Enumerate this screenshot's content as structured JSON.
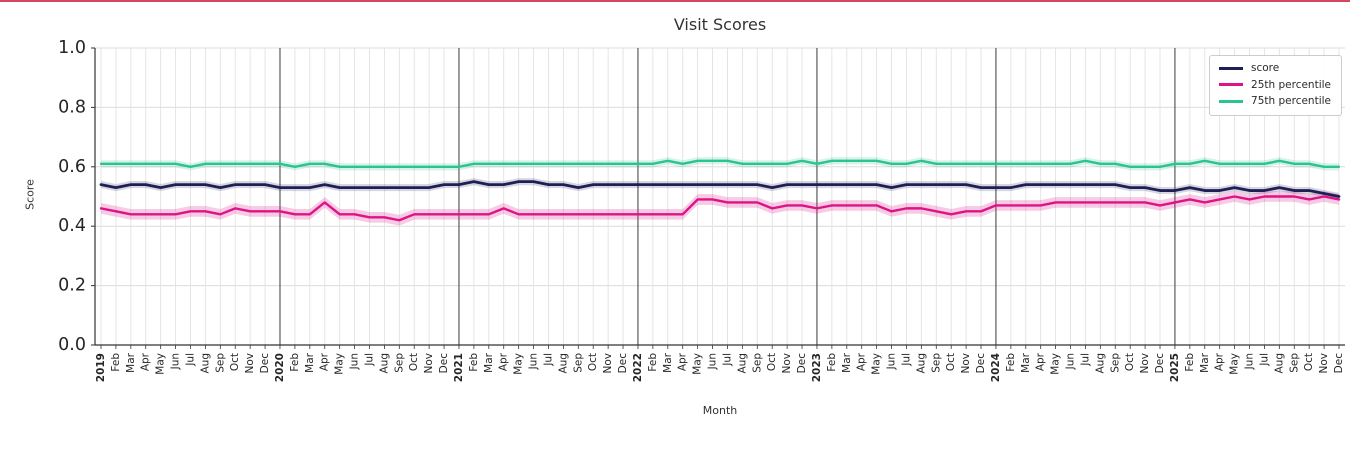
{
  "accent": {
    "top_bar_color": "#d64561"
  },
  "chart_data": {
    "type": "line",
    "title": "Visit Scores",
    "xlabel": "Month",
    "ylabel": "Score",
    "ylim": [
      0.0,
      1.0
    ],
    "ytick_labels": [
      "1.0",
      "0.8",
      "0.6",
      "0.4",
      "0.2",
      "0.0"
    ],
    "grid": true,
    "legend_position": "upper right",
    "x_tick_labels": [
      "2019",
      "Feb",
      "Mar",
      "Apr",
      "May",
      "Jun",
      "Jul",
      "Aug",
      "Sep",
      "Oct",
      "Nov",
      "Dec",
      "2020",
      "Feb",
      "Mar",
      "Apr",
      "May",
      "Jun",
      "Jul",
      "Aug",
      "Sep",
      "Oct",
      "Nov",
      "Dec",
      "2021",
      "Feb",
      "Mar",
      "Apr",
      "May",
      "Jun",
      "Jul",
      "Aug",
      "Sep",
      "Oct",
      "Nov",
      "Dec",
      "2022",
      "Feb",
      "Mar",
      "Apr",
      "May",
      "Jun",
      "Jul",
      "Aug",
      "Sep",
      "Oct",
      "Nov",
      "Dec",
      "2023",
      "Feb",
      "Mar",
      "Apr",
      "May",
      "Jun",
      "Jul",
      "Aug",
      "Sep",
      "Oct",
      "Nov",
      "Dec",
      "2024",
      "Feb",
      "Mar",
      "Apr",
      "May",
      "Jun",
      "Jul",
      "Aug",
      "Sep",
      "Oct",
      "Nov",
      "Dec",
      "2025",
      "Feb",
      "Mar",
      "Apr",
      "May",
      "Jun",
      "Jul",
      "Aug",
      "Sep",
      "Oct",
      "Nov",
      "Dec"
    ],
    "series": [
      {
        "name": "score",
        "color": "#1f1f57",
        "band": 0.012,
        "band_opacity": 0.18,
        "line_width": 2.8,
        "values": [
          0.54,
          0.53,
          0.54,
          0.54,
          0.53,
          0.54,
          0.54,
          0.54,
          0.53,
          0.54,
          0.54,
          0.54,
          0.53,
          0.53,
          0.53,
          0.54,
          0.53,
          0.53,
          0.53,
          0.53,
          0.53,
          0.53,
          0.53,
          0.54,
          0.54,
          0.55,
          0.54,
          0.54,
          0.55,
          0.55,
          0.54,
          0.54,
          0.53,
          0.54,
          0.54,
          0.54,
          0.54,
          0.54,
          0.54,
          0.54,
          0.54,
          0.54,
          0.54,
          0.54,
          0.54,
          0.53,
          0.54,
          0.54,
          0.54,
          0.54,
          0.54,
          0.54,
          0.54,
          0.53,
          0.54,
          0.54,
          0.54,
          0.54,
          0.54,
          0.53,
          0.53,
          0.53,
          0.54,
          0.54,
          0.54,
          0.54,
          0.54,
          0.54,
          0.54,
          0.53,
          0.53,
          0.52,
          0.52,
          0.53,
          0.52,
          0.52,
          0.53,
          0.52,
          0.52,
          0.53,
          0.52,
          0.52,
          0.51,
          0.5
        ]
      },
      {
        "name": "25th percentile",
        "color": "#dd1388",
        "band": 0.018,
        "band_opacity": 0.22,
        "line_width": 2.4,
        "values": [
          0.46,
          0.45,
          0.44,
          0.44,
          0.44,
          0.44,
          0.45,
          0.45,
          0.44,
          0.46,
          0.45,
          0.45,
          0.45,
          0.44,
          0.44,
          0.48,
          0.44,
          0.44,
          0.43,
          0.43,
          0.42,
          0.44,
          0.44,
          0.44,
          0.44,
          0.44,
          0.44,
          0.46,
          0.44,
          0.44,
          0.44,
          0.44,
          0.44,
          0.44,
          0.44,
          0.44,
          0.44,
          0.44,
          0.44,
          0.44,
          0.49,
          0.49,
          0.48,
          0.48,
          0.48,
          0.46,
          0.47,
          0.47,
          0.46,
          0.47,
          0.47,
          0.47,
          0.47,
          0.45,
          0.46,
          0.46,
          0.45,
          0.44,
          0.45,
          0.45,
          0.47,
          0.47,
          0.47,
          0.47,
          0.48,
          0.48,
          0.48,
          0.48,
          0.48,
          0.48,
          0.48,
          0.47,
          0.48,
          0.49,
          0.48,
          0.49,
          0.5,
          0.49,
          0.5,
          0.5,
          0.5,
          0.49,
          0.5,
          0.49
        ]
      },
      {
        "name": "75th percentile",
        "color": "#2bc48f",
        "band": 0.012,
        "band_opacity": 0.2,
        "line_width": 2.4,
        "values": [
          0.61,
          0.61,
          0.61,
          0.61,
          0.61,
          0.61,
          0.6,
          0.61,
          0.61,
          0.61,
          0.61,
          0.61,
          0.61,
          0.6,
          0.61,
          0.61,
          0.6,
          0.6,
          0.6,
          0.6,
          0.6,
          0.6,
          0.6,
          0.6,
          0.6,
          0.61,
          0.61,
          0.61,
          0.61,
          0.61,
          0.61,
          0.61,
          0.61,
          0.61,
          0.61,
          0.61,
          0.61,
          0.61,
          0.62,
          0.61,
          0.62,
          0.62,
          0.62,
          0.61,
          0.61,
          0.61,
          0.61,
          0.62,
          0.61,
          0.62,
          0.62,
          0.62,
          0.62,
          0.61,
          0.61,
          0.62,
          0.61,
          0.61,
          0.61,
          0.61,
          0.61,
          0.61,
          0.61,
          0.61,
          0.61,
          0.61,
          0.62,
          0.61,
          0.61,
          0.6,
          0.6,
          0.6,
          0.61,
          0.61,
          0.62,
          0.61,
          0.61,
          0.61,
          0.61,
          0.62,
          0.61,
          0.61,
          0.6,
          0.6
        ]
      }
    ]
  }
}
